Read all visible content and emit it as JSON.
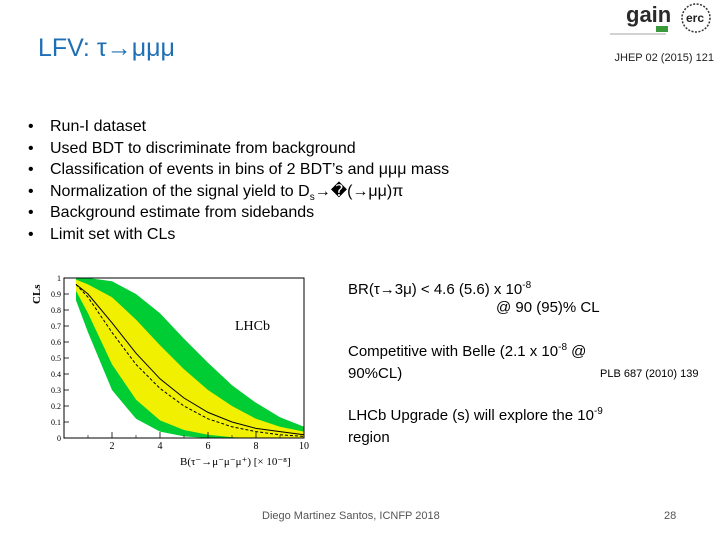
{
  "title": {
    "prefix": "LFV: τ",
    "suffix": "μμμ"
  },
  "reference_top": "JHEP 02 (2015) 121",
  "logo": {
    "gain_text": "gain",
    "erc_text": "erc"
  },
  "bullets": [
    {
      "text": "Run-I dataset"
    },
    {
      "text": "Used BDT to discriminate from background"
    },
    {
      "text": "Classification of events in bins of 2 BDT’s and μμμ mass"
    },
    {
      "pre": "Normalization of the signal yield to D",
      "sub": "s",
      "unknown": "�",
      "post": "(",
      "post2": "μμ)π"
    },
    {
      "text": "Background estimate from sidebands"
    },
    {
      "text": "Limit set with CLs"
    }
  ],
  "plot": {
    "ylabel": "CLs",
    "label": "LHCb",
    "yticks": [
      "1",
      "0.9",
      "0.8",
      "0.7",
      "0.6",
      "0.5",
      "0.4",
      "0.3",
      "0.2",
      "0.1",
      "0"
    ],
    "xticks": [
      "2",
      "4",
      "6",
      "8",
      "10"
    ],
    "xlabel": "B(τ⁻→μ⁻μ⁻μ⁺) [× 10⁻⁸]",
    "colors": {
      "green": "#00cc33",
      "yellow": "#f0f000"
    }
  },
  "chart_data": {
    "type": "line",
    "x": [
      0.5,
      1,
      2,
      3,
      4,
      5,
      6,
      7,
      8,
      9,
      10
    ],
    "series": [
      {
        "values": [
          0.96,
          0.9,
          0.72,
          0.53,
          0.37,
          0.25,
          0.16,
          0.1,
          0.06,
          0.04,
          0.02
        ]
      },
      {
        "values": [
          0.96,
          0.88,
          0.66,
          0.46,
          0.31,
          0.2,
          0.12,
          0.07,
          0.04,
          0.02,
          0.01
        ]
      }
    ],
    "bands": [
      {
        "color": "green",
        "upper": [
          1,
          1,
          0.98,
          0.9,
          0.78,
          0.62,
          0.47,
          0.33,
          0.22,
          0.13,
          0.07
        ],
        "lower": [
          0.86,
          0.66,
          0.3,
          0.12,
          0.04,
          0.01,
          0,
          0,
          0,
          0,
          0
        ]
      },
      {
        "color": "yellow",
        "upper": [
          0.99,
          0.96,
          0.88,
          0.74,
          0.58,
          0.43,
          0.3,
          0.2,
          0.12,
          0.07,
          0.04
        ],
        "lower": [
          0.92,
          0.78,
          0.46,
          0.24,
          0.11,
          0.05,
          0.02,
          0.005,
          0,
          0,
          0
        ]
      }
    ],
    "xlim": [
      0,
      10
    ],
    "ylim": [
      0,
      1
    ]
  },
  "br_line": {
    "pre": "BR(τ",
    "mid": "3μ) < 4.6 (5.6) x 10",
    "sup": "-8"
  },
  "cl_line": "@ 90 (95)% CL",
  "competitive": {
    "pre": "Competitive with Belle (2.1 x 10",
    "sup": "-8",
    "post": " @",
    "line2": "90%CL)"
  },
  "plb_ref": "PLB 687 (2010) 139",
  "upgrade": {
    "pre": "LHCb Upgrade (s) will explore the 10",
    "sup": "-9",
    "line2": "region"
  },
  "footer": "Diego Martinez Santos, ICNFP 2018",
  "page_number": "28"
}
